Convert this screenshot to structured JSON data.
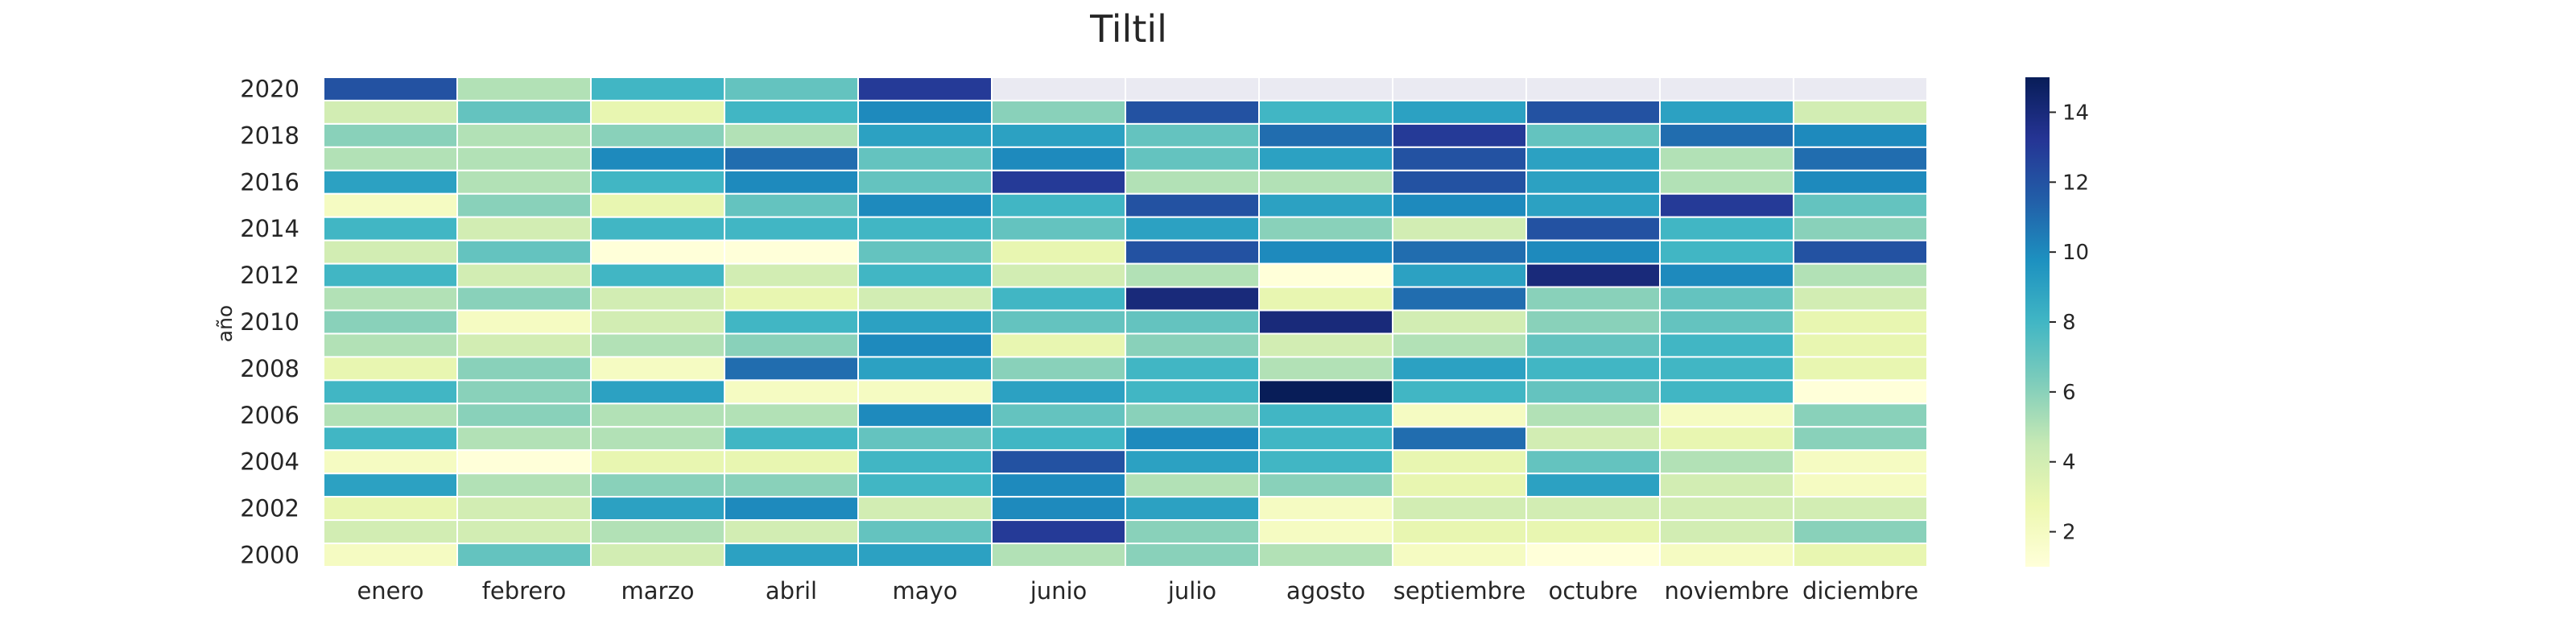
{
  "chart_data": {
    "type": "heatmap",
    "title": "Tiltil",
    "xlabel": "",
    "ylabel": "año",
    "x_categories": [
      "enero",
      "febrero",
      "marzo",
      "abril",
      "mayo",
      "junio",
      "julio",
      "agosto",
      "septiembre",
      "octubre",
      "noviembre",
      "diciembre"
    ],
    "years": [
      2020,
      2019,
      2018,
      2017,
      2016,
      2015,
      2014,
      2013,
      2012,
      2011,
      2010,
      2009,
      2008,
      2007,
      2006,
      2005,
      2004,
      2003,
      2002,
      2001,
      2000
    ],
    "y_tick_labels": [
      "2020",
      "2018",
      "2016",
      "2014",
      "2012",
      "2010",
      "2008",
      "2006",
      "2004",
      "2002",
      "2000"
    ],
    "colormap": "YlGnBu",
    "color_range": [
      1,
      15
    ],
    "colorbar_ticks": [
      "2",
      "4",
      "6",
      "8",
      "10",
      "12",
      "14"
    ],
    "missing_color": "#eaeaf2",
    "values": [
      [
        12,
        5,
        8,
        7,
        13,
        null,
        null,
        null,
        null,
        null,
        null,
        null
      ],
      [
        4,
        7,
        3,
        8,
        10,
        6,
        12,
        8,
        9,
        12,
        9,
        4
      ],
      [
        6,
        5,
        6,
        5,
        9,
        9,
        7,
        11,
        13,
        7,
        11,
        10
      ],
      [
        5,
        5,
        10,
        11,
        7,
        10,
        7,
        9,
        12,
        9,
        5,
        11
      ],
      [
        9,
        5,
        8,
        10,
        7,
        13,
        5,
        5,
        12,
        9,
        5,
        10
      ],
      [
        2,
        6,
        3,
        7,
        10,
        8,
        12,
        9,
        10,
        9,
        13,
        7
      ],
      [
        8,
        4,
        8,
        8,
        8,
        7,
        9,
        6,
        4,
        12,
        8,
        6
      ],
      [
        4,
        7,
        1,
        1,
        7,
        3,
        12,
        10,
        11,
        10,
        8,
        12
      ],
      [
        8,
        4,
        8,
        4,
        8,
        4,
        5,
        1,
        9,
        14,
        10,
        5
      ],
      [
        5,
        6,
        4,
        3,
        4,
        8,
        14,
        3,
        11,
        6,
        7,
        4
      ],
      [
        6,
        2,
        4,
        8,
        9,
        7,
        7,
        14,
        4,
        6,
        7,
        3
      ],
      [
        5,
        4,
        5,
        6,
        10,
        3,
        6,
        4,
        5,
        7,
        8,
        3
      ],
      [
        3,
        6,
        2,
        11,
        9,
        6,
        8,
        5,
        9,
        8,
        8,
        3
      ],
      [
        8,
        6,
        9,
        2,
        2,
        9,
        8,
        15,
        8,
        7,
        8,
        1
      ],
      [
        5,
        6,
        5,
        5,
        10,
        7,
        6,
        8,
        2,
        5,
        2,
        6
      ],
      [
        8,
        5,
        5,
        8,
        7,
        8,
        10,
        8,
        11,
        4,
        3,
        6
      ],
      [
        2,
        1,
        3,
        3,
        8,
        12,
        9,
        8,
        3,
        7,
        5,
        2
      ],
      [
        9,
        5,
        6,
        6,
        8,
        10,
        5,
        6,
        3,
        9,
        4,
        2
      ],
      [
        3,
        4,
        9,
        10,
        4,
        10,
        9,
        2,
        4,
        4,
        4,
        4
      ],
      [
        4,
        4,
        5,
        4,
        7,
        13,
        6,
        2,
        3,
        3,
        4,
        6
      ],
      [
        2,
        7,
        4,
        9,
        9,
        5,
        6,
        5,
        2,
        1,
        2,
        3
      ]
    ]
  }
}
